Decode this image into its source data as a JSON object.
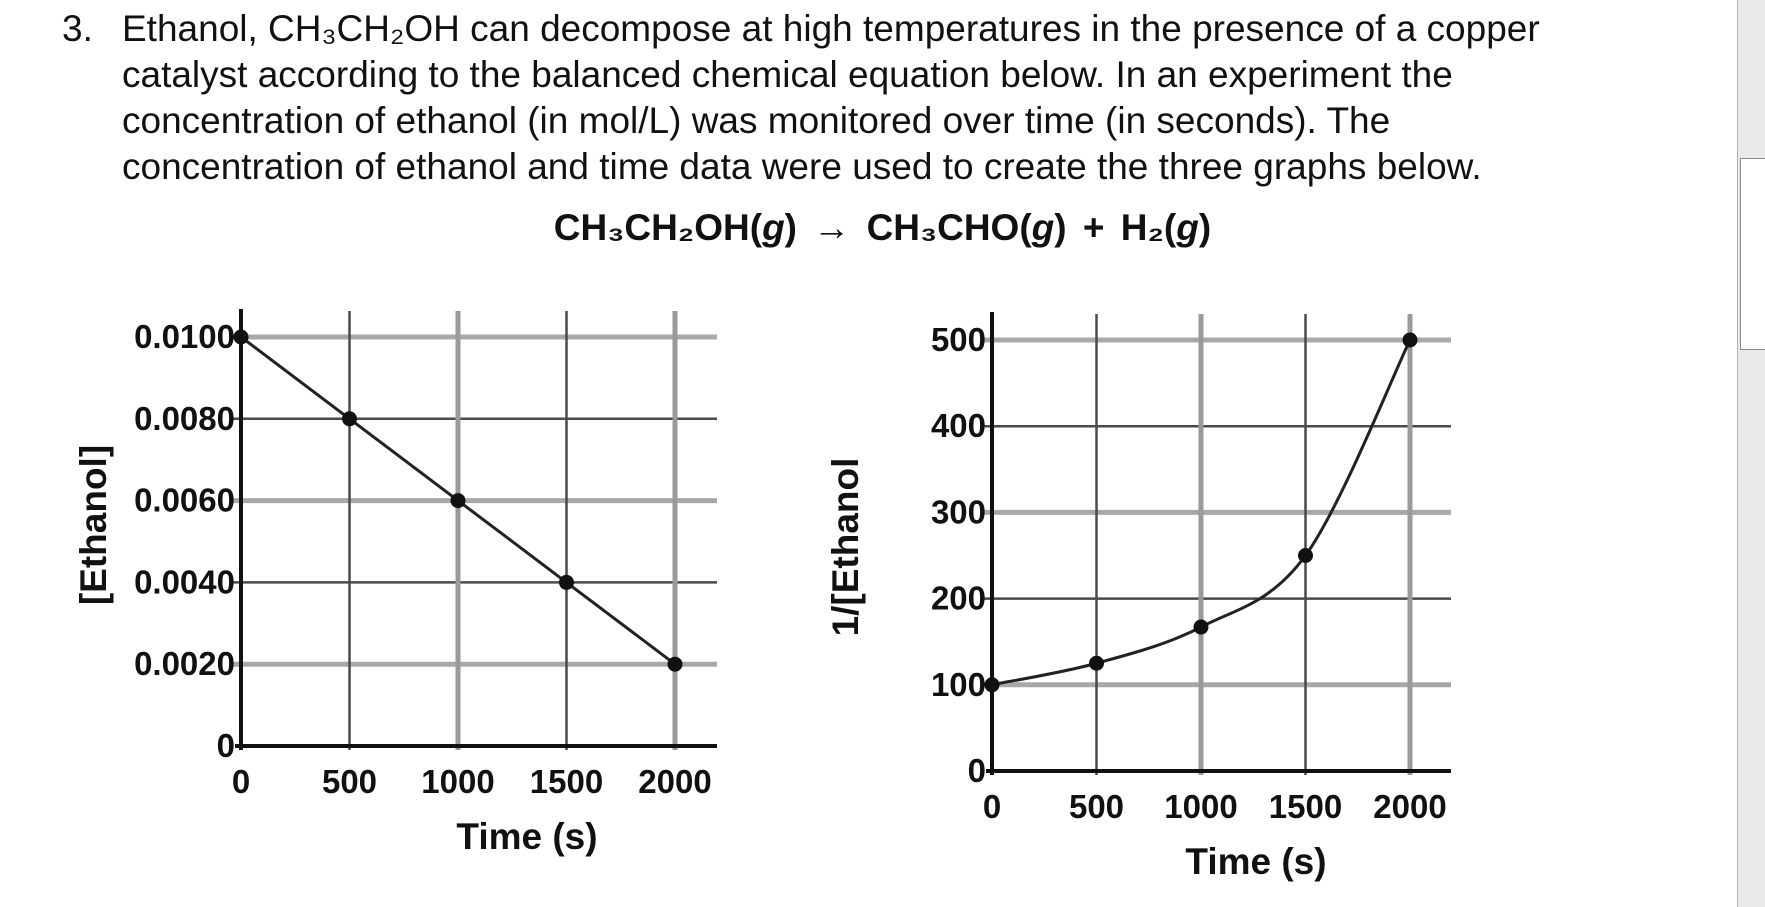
{
  "question": {
    "number": "3.",
    "lines": [
      "Ethanol, CH₃CH₂OH can decompose at high temperatures in the presence of a copper",
      "catalyst according to the balanced chemical equation below.  In an experiment the",
      "concentration of ethanol (in mol/L) was monitored over time (in seconds).  The",
      "concentration of ethanol and time data were used to create the three graphs below."
    ]
  },
  "equation": {
    "reactant": "CH₃CH₂OH(",
    "reactant_state": "g",
    "reactant_close": ")",
    "arrow": "→",
    "product1": "CH₃CHO(",
    "product1_state": "g",
    "product1_close": ")",
    "plus": "+",
    "product2": "H₂(",
    "product2_state": "g",
    "product2_close": ")"
  },
  "chart_data": [
    {
      "type": "line",
      "x": [
        0,
        500,
        1000,
        1500,
        2000
      ],
      "y": [
        0.01,
        0.008,
        0.006,
        0.004,
        0.002
      ],
      "xlabel": "Time (s)",
      "ylabel": "[Ethanol]",
      "xlim": [
        0,
        2000
      ],
      "ylim": [
        0,
        0.01
      ],
      "xticks": [
        "0",
        "500",
        "1000",
        "1500",
        "2000"
      ],
      "yticks": [
        "0",
        "0.0020",
        "0.0040",
        "0.0060",
        "0.0080",
        "0.0100"
      ],
      "grid": true,
      "markers": true
    },
    {
      "type": "line",
      "x": [
        0,
        500,
        1000,
        1500,
        2000
      ],
      "y": [
        100,
        125,
        167,
        250,
        500
      ],
      "xlabel": "Time (s)",
      "ylabel": "1/[Ethanol",
      "xlim": [
        0,
        2000
      ],
      "ylim": [
        0,
        500
      ],
      "xticks": [
        "0",
        "500",
        "1000",
        "1500",
        "2000"
      ],
      "yticks": [
        "0",
        "100",
        "200",
        "300",
        "400",
        "500"
      ],
      "grid": true,
      "markers": true,
      "curve": "smooth"
    }
  ]
}
